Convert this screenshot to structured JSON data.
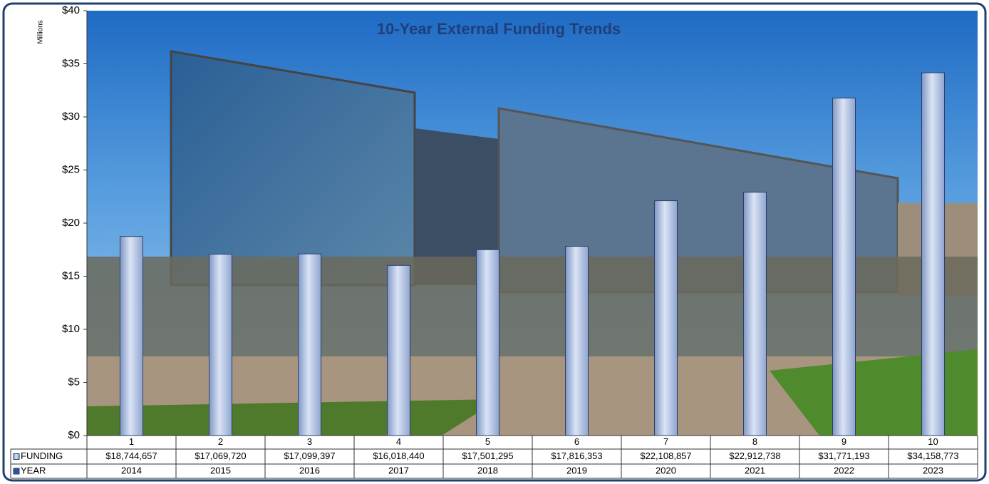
{
  "chart_data": {
    "type": "bar",
    "title": "10-Year External Funding Trends",
    "y_axis_label": "Millions",
    "categories": [
      "1",
      "2",
      "3",
      "4",
      "5",
      "6",
      "7",
      "8",
      "9",
      "10"
    ],
    "series": [
      {
        "name": "FUNDING",
        "color": "#9fb3d9",
        "values": [
          18.744657,
          17.06972,
          17.099397,
          16.01844,
          17.501295,
          17.816353,
          22.108857,
          22.912738,
          31.771193,
          34.158773
        ],
        "value_labels": [
          "$18,744,657",
          "$17,069,720",
          "$17,099,397",
          "$16,018,440",
          "$17,501,295",
          "$17,816,353",
          "$22,108,857",
          "$22,912,738",
          "$31,771,193",
          "$34,158,773"
        ]
      },
      {
        "name": "YEAR",
        "color": "#2f5597",
        "values": [
          2014,
          2015,
          2016,
          2017,
          2018,
          2019,
          2020,
          2021,
          2022,
          2023
        ]
      }
    ],
    "ylim": [
      0,
      40
    ],
    "yticks": [
      {
        "value": 0,
        "label": "$0"
      },
      {
        "value": 5,
        "label": "$5"
      },
      {
        "value": 10,
        "label": "$10"
      },
      {
        "value": 15,
        "label": "$15"
      },
      {
        "value": 20,
        "label": "$20"
      },
      {
        "value": 25,
        "label": "$25"
      },
      {
        "value": 30,
        "label": "$30"
      },
      {
        "value": 35,
        "label": "$35"
      },
      {
        "value": 40,
        "label": "$40"
      }
    ]
  }
}
